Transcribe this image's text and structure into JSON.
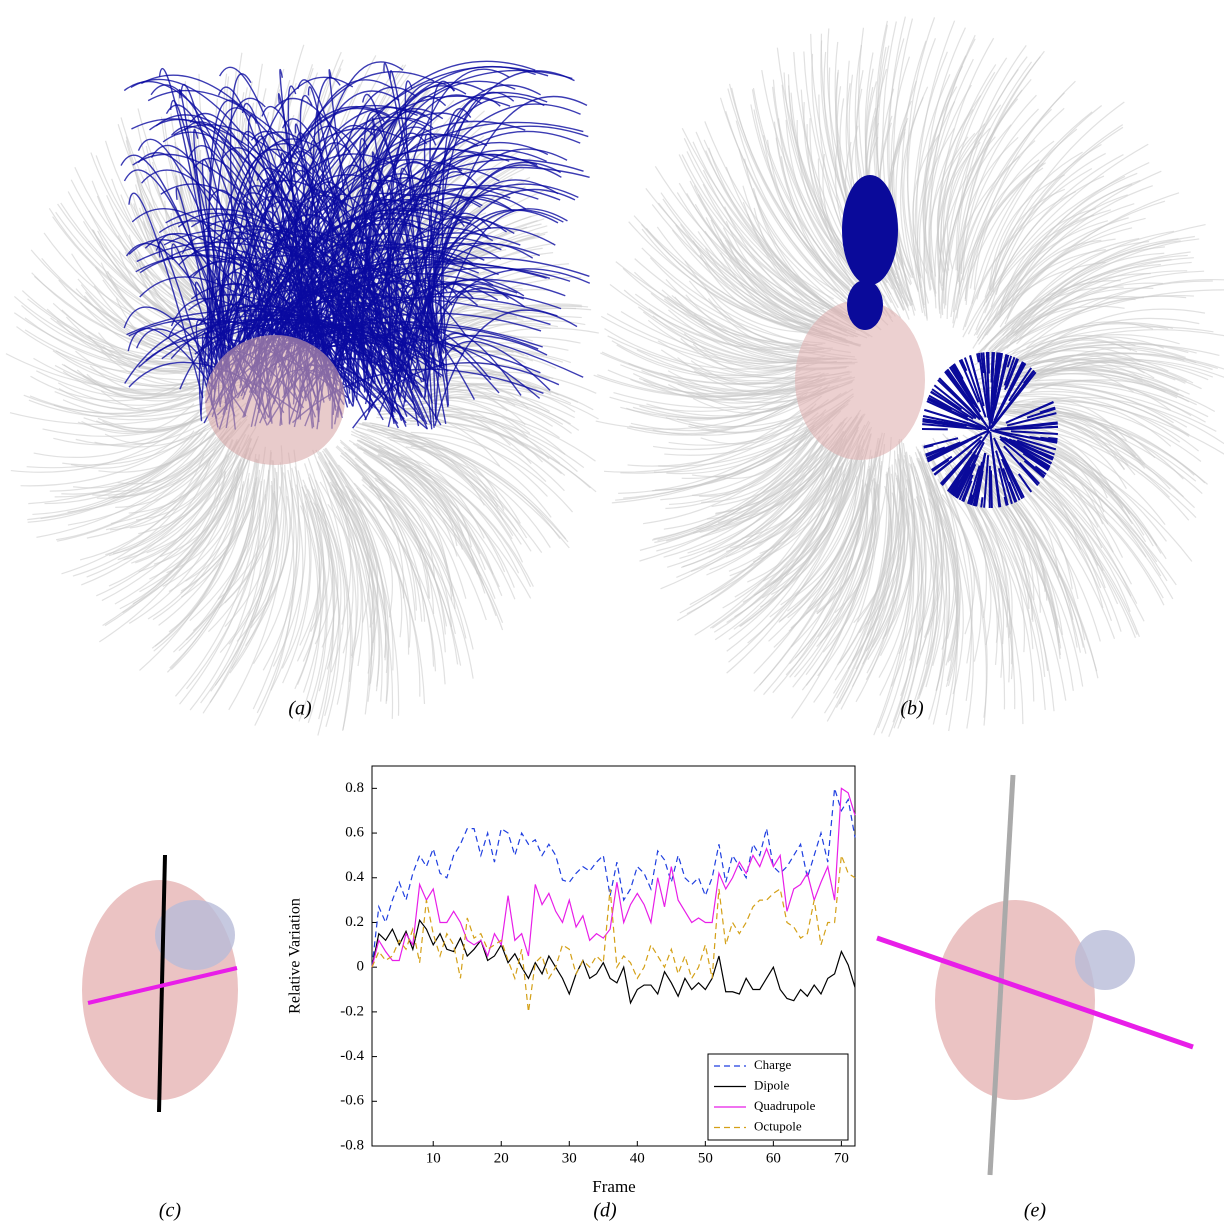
{
  "panels": {
    "a": "(a)",
    "b": "(b)",
    "c": "(c)",
    "d": "(d)",
    "e": "(e)"
  },
  "chart_data": {
    "type": "line",
    "x_label": "Frame",
    "y_label": "Relative Variation",
    "x": [
      1,
      2,
      3,
      4,
      5,
      6,
      7,
      8,
      9,
      10,
      11,
      12,
      13,
      14,
      15,
      16,
      17,
      18,
      19,
      20,
      21,
      22,
      23,
      24,
      25,
      26,
      27,
      28,
      29,
      30,
      31,
      32,
      33,
      34,
      35,
      36,
      37,
      38,
      39,
      40,
      41,
      42,
      43,
      44,
      45,
      46,
      47,
      48,
      49,
      50,
      51,
      52,
      53,
      54,
      55,
      56,
      57,
      58,
      59,
      60,
      61,
      62,
      63,
      64,
      65,
      66,
      67,
      68,
      69,
      70,
      71,
      72
    ],
    "xlim": [
      1,
      72
    ],
    "xticks": [
      10,
      20,
      30,
      40,
      50,
      60,
      70
    ],
    "ylim": [
      -0.8,
      0.9
    ],
    "yticks": [
      -0.8,
      -0.6,
      -0.4,
      -0.2,
      0,
      0.2,
      0.4,
      0.6,
      0.8
    ],
    "legend": "lower right",
    "series": [
      {
        "name": "Charge",
        "color": "#1f3fe0",
        "linestyle": "dashed",
        "values": [
          0,
          0.27,
          0.2,
          0.3,
          0.38,
          0.3,
          0.42,
          0.5,
          0.45,
          0.53,
          0.42,
          0.4,
          0.5,
          0.55,
          0.62,
          0.62,
          0.5,
          0.6,
          0.47,
          0.62,
          0.6,
          0.5,
          0.6,
          0.55,
          0.57,
          0.5,
          0.55,
          0.5,
          0.39,
          0.38,
          0.42,
          0.45,
          0.43,
          0.47,
          0.5,
          0.32,
          0.47,
          0.3,
          0.35,
          0.45,
          0.42,
          0.35,
          0.52,
          0.48,
          0.38,
          0.5,
          0.4,
          0.37,
          0.4,
          0.32,
          0.4,
          0.55,
          0.38,
          0.5,
          0.45,
          0.4,
          0.55,
          0.5,
          0.62,
          0.45,
          0.42,
          0.45,
          0.5,
          0.55,
          0.4,
          0.5,
          0.6,
          0.47,
          0.8,
          0.7,
          0.75,
          0.58
        ]
      },
      {
        "name": "Dipole",
        "color": "#000000",
        "linestyle": "solid",
        "values": [
          0,
          0.15,
          0.12,
          0.17,
          0.1,
          0.16,
          0.08,
          0.21,
          0.17,
          0.1,
          0.15,
          0.08,
          0.07,
          0.13,
          0.05,
          0.08,
          0.12,
          0.03,
          0.05,
          0.1,
          0.02,
          0.06,
          0,
          -0.05,
          0.02,
          -0.03,
          0.05,
          0,
          -0.05,
          -0.12,
          -0.03,
          0.03,
          -0.05,
          -0.03,
          0.02,
          -0.05,
          -0.07,
          0,
          -0.16,
          -0.1,
          -0.08,
          -0.08,
          -0.12,
          -0.02,
          -0.07,
          -0.13,
          -0.05,
          -0.1,
          -0.07,
          -0.1,
          -0.05,
          0.05,
          -0.11,
          -0.11,
          -0.12,
          -0.05,
          -0.1,
          -0.1,
          -0.05,
          0,
          -0.1,
          -0.14,
          -0.15,
          -0.1,
          -0.13,
          -0.08,
          -0.12,
          -0.05,
          -0.03,
          0.07,
          0.01,
          -0.09
        ]
      },
      {
        "name": "Quadrupole",
        "color": "#e81ee8",
        "linestyle": "solid",
        "values": [
          0,
          0.12,
          0.07,
          0.03,
          0.03,
          0.15,
          0.1,
          0.37,
          0.3,
          0.35,
          0.2,
          0.2,
          0.25,
          0.2,
          0.12,
          0.1,
          0.12,
          0.05,
          0.15,
          0.1,
          0.32,
          0.12,
          0.15,
          0.05,
          0.37,
          0.28,
          0.33,
          0.25,
          0.2,
          0.3,
          0.18,
          0.23,
          0.12,
          0.15,
          0.13,
          0.17,
          0.38,
          0.2,
          0.28,
          0.33,
          0.28,
          0.2,
          0.4,
          0.27,
          0.45,
          0.3,
          0.25,
          0.2,
          0.22,
          0.2,
          0.2,
          0.42,
          0.35,
          0.4,
          0.47,
          0.42,
          0.5,
          0.45,
          0.53,
          0.45,
          0.5,
          0.25,
          0.35,
          0.37,
          0.42,
          0.3,
          0.38,
          0.45,
          0.3,
          0.8,
          0.78,
          0.68
        ]
      },
      {
        "name": "Octupole",
        "color": "#d4a017",
        "linestyle": "dashed",
        "values": [
          0,
          0.07,
          0.03,
          0.05,
          0.12,
          0.08,
          0.17,
          0.02,
          0.3,
          0.15,
          0.05,
          0.15,
          0.1,
          -0.05,
          0.22,
          0.13,
          0.15,
          0.08,
          0.1,
          0.12,
          0.03,
          -0.05,
          0.08,
          -0.2,
          0.02,
          0.05,
          -0.05,
          0,
          0.1,
          0.08,
          -0.03,
          0.03,
          0,
          0.05,
          0.02,
          0.35,
          0,
          0.05,
          0.02,
          -0.05,
          0,
          0.1,
          0.05,
          0,
          0.08,
          -0.03,
          0.05,
          -0.05,
          0,
          0.1,
          -0.05,
          0.35,
          0.1,
          0.2,
          0.15,
          0.2,
          0.27,
          0.3,
          0.3,
          0.33,
          0.35,
          0.2,
          0.18,
          0.13,
          0.15,
          0.3,
          0.1,
          0.2,
          0.2,
          0.5,
          0.42,
          0.4
        ]
      }
    ]
  }
}
